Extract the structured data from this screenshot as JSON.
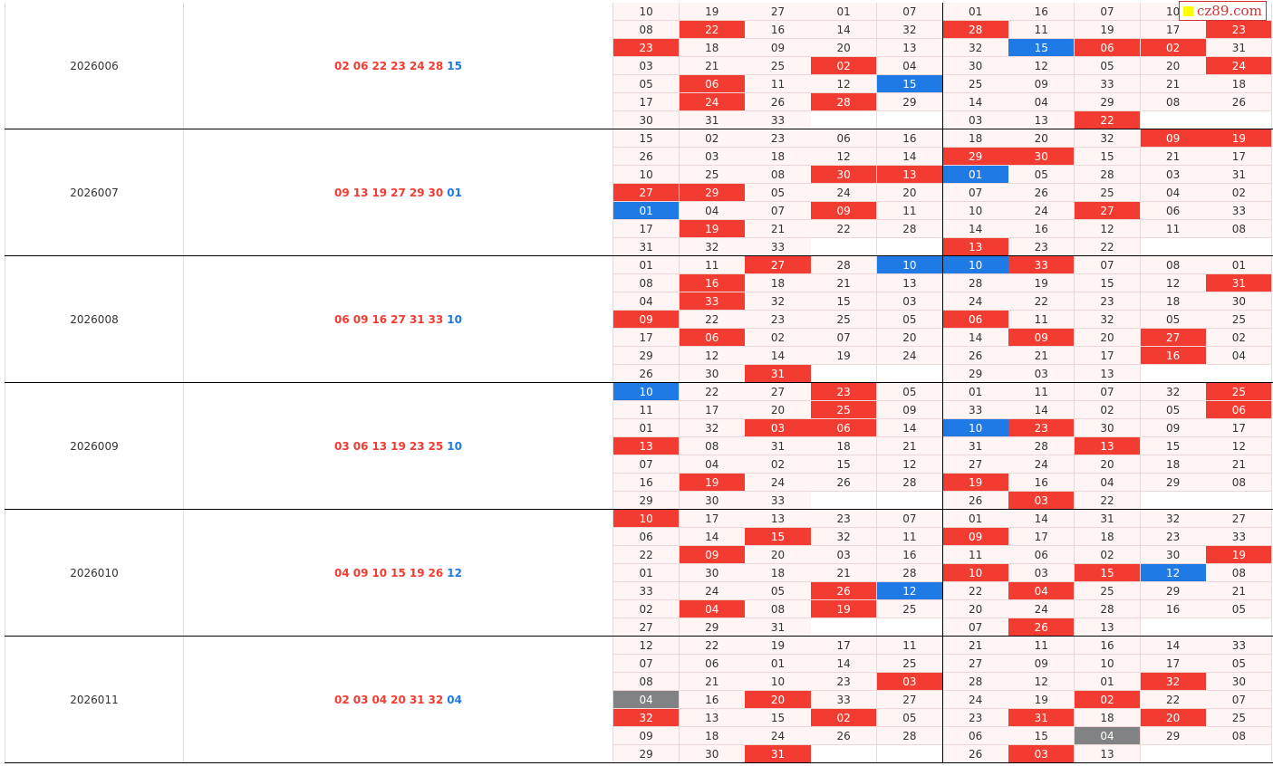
{
  "watermark": "cz89.com",
  "colors": {
    "red": "#f23c32",
    "blue": "#1f7ae6",
    "gray": "#808283"
  },
  "rows": [
    {
      "issue": "2026006",
      "red": [
        "02",
        "06",
        "22",
        "23",
        "24",
        "28"
      ],
      "blue": "15",
      "grid": [
        [
          "10",
          "19",
          "27",
          "01",
          "07",
          "01",
          "16",
          "07",
          "10",
          null
        ],
        [
          "08",
          {
            "text": "22",
            "color": "red"
          },
          "16",
          "14",
          "32",
          {
            "text": "28",
            "color": "red"
          },
          "11",
          "19",
          "17",
          {
            "text": "23",
            "color": "red"
          }
        ],
        [
          {
            "text": "23",
            "color": "red"
          },
          "18",
          "09",
          "20",
          "13",
          "32",
          {
            "text": "15",
            "color": "blue"
          },
          {
            "text": "06",
            "color": "red"
          },
          {
            "text": "02",
            "color": "red"
          },
          "31"
        ],
        [
          "03",
          "21",
          "25",
          {
            "text": "02",
            "color": "red"
          },
          "04",
          "30",
          "12",
          "05",
          "20",
          {
            "text": "24",
            "color": "red"
          }
        ],
        [
          "05",
          {
            "text": "06",
            "color": "red"
          },
          "11",
          "12",
          {
            "text": "15",
            "color": "blue"
          },
          "25",
          "09",
          "33",
          "21",
          "18"
        ],
        [
          "17",
          {
            "text": "24",
            "color": "red"
          },
          "26",
          {
            "text": "28",
            "color": "red"
          },
          "29",
          "14",
          "04",
          "29",
          "08",
          "26"
        ],
        [
          "30",
          "31",
          "33",
          null,
          null,
          "03",
          "13",
          {
            "text": "22",
            "color": "red"
          },
          null,
          null
        ]
      ]
    },
    {
      "issue": "2026007",
      "red": [
        "09",
        "13",
        "19",
        "27",
        "29",
        "30"
      ],
      "blue": "01",
      "grid": [
        [
          "15",
          "02",
          "23",
          "06",
          "16",
          "18",
          "20",
          "32",
          {
            "text": "09",
            "color": "red"
          },
          {
            "text": "19",
            "color": "red"
          }
        ],
        [
          "26",
          "03",
          "18",
          "12",
          "14",
          {
            "text": "29",
            "color": "red"
          },
          {
            "text": "30",
            "color": "red"
          },
          "15",
          "21",
          "17"
        ],
        [
          "10",
          "25",
          "08",
          {
            "text": "30",
            "color": "red"
          },
          {
            "text": "13",
            "color": "red"
          },
          {
            "text": "01",
            "color": "blue"
          },
          "05",
          "28",
          "03",
          "31"
        ],
        [
          {
            "text": "27",
            "color": "red"
          },
          {
            "text": "29",
            "color": "red"
          },
          "05",
          "24",
          "20",
          "07",
          "26",
          "25",
          "04",
          "02"
        ],
        [
          {
            "text": "01",
            "color": "blue"
          },
          "04",
          "07",
          {
            "text": "09",
            "color": "red"
          },
          "11",
          "10",
          "24",
          {
            "text": "27",
            "color": "red"
          },
          "06",
          "33"
        ],
        [
          "17",
          {
            "text": "19",
            "color": "red"
          },
          "21",
          "22",
          "28",
          "14",
          "16",
          "12",
          "11",
          "08"
        ],
        [
          "31",
          "32",
          "33",
          null,
          null,
          {
            "text": "13",
            "color": "red"
          },
          "23",
          "22",
          null,
          null
        ]
      ]
    },
    {
      "issue": "2026008",
      "red": [
        "06",
        "09",
        "16",
        "27",
        "31",
        "33"
      ],
      "blue": "10",
      "grid": [
        [
          "01",
          "11",
          {
            "text": "27",
            "color": "red"
          },
          "28",
          {
            "text": "10",
            "color": "blue"
          },
          {
            "text": "10",
            "color": "blue"
          },
          {
            "text": "33",
            "color": "red"
          },
          "07",
          "08",
          "01"
        ],
        [
          "08",
          {
            "text": "16",
            "color": "red"
          },
          "18",
          "21",
          "13",
          "28",
          "19",
          "15",
          "12",
          {
            "text": "31",
            "color": "red"
          }
        ],
        [
          "04",
          {
            "text": "33",
            "color": "red"
          },
          "32",
          "15",
          "03",
          "24",
          "22",
          "23",
          "18",
          "30"
        ],
        [
          {
            "text": "09",
            "color": "red"
          },
          "22",
          "23",
          "25",
          "05",
          {
            "text": "06",
            "color": "red"
          },
          "11",
          "32",
          "05",
          "25"
        ],
        [
          "17",
          {
            "text": "06",
            "color": "red"
          },
          "02",
          "07",
          "20",
          "14",
          {
            "text": "09",
            "color": "red"
          },
          "20",
          {
            "text": "27",
            "color": "red"
          },
          "02"
        ],
        [
          "29",
          "12",
          "14",
          "19",
          "24",
          "26",
          "21",
          "17",
          {
            "text": "16",
            "color": "red"
          },
          "04"
        ],
        [
          "26",
          "30",
          {
            "text": "31",
            "color": "red"
          },
          null,
          null,
          "29",
          "03",
          "13",
          null,
          null
        ]
      ]
    },
    {
      "issue": "2026009",
      "red": [
        "03",
        "06",
        "13",
        "19",
        "23",
        "25"
      ],
      "blue": "10",
      "grid": [
        [
          {
            "text": "10",
            "color": "blue"
          },
          "22",
          "27",
          {
            "text": "23",
            "color": "red"
          },
          "05",
          "01",
          "11",
          "07",
          "32",
          {
            "text": "25",
            "color": "red"
          }
        ],
        [
          "11",
          "17",
          "20",
          {
            "text": "25",
            "color": "red"
          },
          "09",
          "33",
          "14",
          "02",
          "05",
          {
            "text": "06",
            "color": "red"
          }
        ],
        [
          "01",
          "32",
          {
            "text": "03",
            "color": "red"
          },
          {
            "text": "06",
            "color": "red"
          },
          "14",
          {
            "text": "10",
            "color": "blue"
          },
          {
            "text": "23",
            "color": "red"
          },
          "30",
          "09",
          "17"
        ],
        [
          {
            "text": "13",
            "color": "red"
          },
          "08",
          "31",
          "18",
          "21",
          "31",
          "28",
          {
            "text": "13",
            "color": "red"
          },
          "15",
          "12"
        ],
        [
          "07",
          "04",
          "02",
          "15",
          "12",
          "27",
          "24",
          "20",
          "18",
          "21"
        ],
        [
          "16",
          {
            "text": "19",
            "color": "red"
          },
          "24",
          "26",
          "28",
          {
            "text": "19",
            "color": "red"
          },
          "16",
          "04",
          "29",
          "08"
        ],
        [
          "29",
          "30",
          "33",
          null,
          null,
          "26",
          {
            "text": "03",
            "color": "red"
          },
          "22",
          null,
          null
        ]
      ]
    },
    {
      "issue": "2026010",
      "red": [
        "04",
        "09",
        "10",
        "15",
        "19",
        "26"
      ],
      "blue": "12",
      "grid": [
        [
          {
            "text": "10",
            "color": "red"
          },
          "17",
          "13",
          "23",
          "07",
          "01",
          "14",
          "31",
          "32",
          "27"
        ],
        [
          "06",
          "14",
          {
            "text": "15",
            "color": "red"
          },
          "32",
          "11",
          {
            "text": "09",
            "color": "red"
          },
          "17",
          "18",
          "23",
          "33"
        ],
        [
          "22",
          {
            "text": "09",
            "color": "red"
          },
          "20",
          "03",
          "16",
          "11",
          "06",
          "02",
          "30",
          {
            "text": "19",
            "color": "red"
          }
        ],
        [
          "01",
          "30",
          "18",
          "21",
          "28",
          {
            "text": "10",
            "color": "red"
          },
          "03",
          {
            "text": "15",
            "color": "red"
          },
          {
            "text": "12",
            "color": "blue"
          },
          "08"
        ],
        [
          "33",
          "24",
          "05",
          {
            "text": "26",
            "color": "red"
          },
          {
            "text": "12",
            "color": "blue"
          },
          "22",
          {
            "text": "04",
            "color": "red"
          },
          "25",
          "29",
          "21"
        ],
        [
          "02",
          {
            "text": "04",
            "color": "red"
          },
          "08",
          {
            "text": "19",
            "color": "red"
          },
          "25",
          "20",
          "24",
          "28",
          "16",
          "05"
        ],
        [
          "27",
          "29",
          "31",
          null,
          null,
          "07",
          {
            "text": "26",
            "color": "red"
          },
          "13",
          null,
          null
        ]
      ]
    },
    {
      "issue": "2026011",
      "red": [
        "02",
        "03",
        "04",
        "20",
        "31",
        "32"
      ],
      "blue": "04",
      "grid": [
        [
          "12",
          "22",
          "19",
          "17",
          "11",
          "21",
          "11",
          "16",
          "14",
          "33"
        ],
        [
          "07",
          "06",
          "01",
          "14",
          "25",
          "27",
          "09",
          "10",
          "17",
          "05"
        ],
        [
          "08",
          "21",
          "10",
          "23",
          {
            "text": "03",
            "color": "red"
          },
          "28",
          "12",
          "01",
          {
            "text": "32",
            "color": "red"
          },
          "30"
        ],
        [
          {
            "text": "04",
            "color": "gray"
          },
          "16",
          {
            "text": "20",
            "color": "red"
          },
          "33",
          "27",
          "24",
          "19",
          {
            "text": "02",
            "color": "red"
          },
          "22",
          "07"
        ],
        [
          {
            "text": "32",
            "color": "red"
          },
          "13",
          "15",
          {
            "text": "02",
            "color": "red"
          },
          "05",
          "23",
          {
            "text": "31",
            "color": "red"
          },
          "18",
          {
            "text": "20",
            "color": "red"
          },
          "25"
        ],
        [
          "09",
          "18",
          "24",
          "26",
          "28",
          "06",
          "15",
          {
            "text": "04",
            "color": "gray"
          },
          "29",
          "08"
        ],
        [
          "29",
          "30",
          {
            "text": "31",
            "color": "red"
          },
          null,
          null,
          "26",
          {
            "text": "03",
            "color": "red"
          },
          "13",
          null,
          null
        ]
      ]
    }
  ]
}
